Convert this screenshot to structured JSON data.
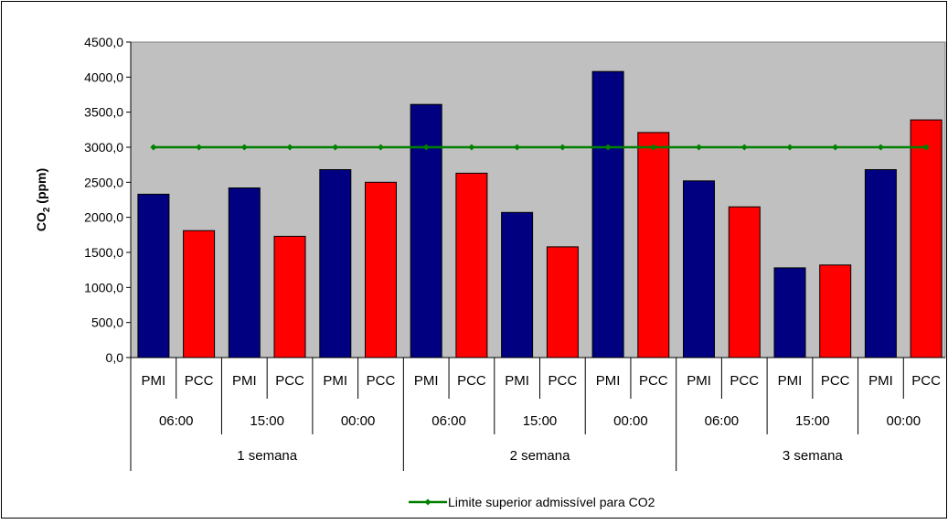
{
  "chart_data": {
    "type": "bar",
    "title": "",
    "xlabel": "",
    "ylabel": "CO",
    "ylabel_sub": "2",
    "ylabel_suffix": " (ppm)",
    "ylim": [
      0,
      4500
    ],
    "yticks": [
      "0,0",
      "500,0",
      "1000,0",
      "1500,0",
      "2000,0",
      "2500,0",
      "3000,0",
      "3500,0",
      "4000,0",
      "4500,0"
    ],
    "grid": false,
    "categories": [
      {
        "week": "1 semana",
        "time": "06:00",
        "group": "PMI"
      },
      {
        "week": "1 semana",
        "time": "06:00",
        "group": "PCC"
      },
      {
        "week": "1 semana",
        "time": "15:00",
        "group": "PMI"
      },
      {
        "week": "1 semana",
        "time": "15:00",
        "group": "PCC"
      },
      {
        "week": "1 semana",
        "time": "00:00",
        "group": "PMI"
      },
      {
        "week": "1 semana",
        "time": "00:00",
        "group": "PCC"
      },
      {
        "week": "2 semana",
        "time": "06:00",
        "group": "PMI"
      },
      {
        "week": "2 semana",
        "time": "06:00",
        "group": "PCC"
      },
      {
        "week": "2 semana",
        "time": "15:00",
        "group": "PMI"
      },
      {
        "week": "2 semana",
        "time": "15:00",
        "group": "PCC"
      },
      {
        "week": "2 semana",
        "time": "00:00",
        "group": "PMI"
      },
      {
        "week": "2 semana",
        "time": "00:00",
        "group": "PCC"
      },
      {
        "week": "3 semana",
        "time": "06:00",
        "group": "PMI"
      },
      {
        "week": "3 semana",
        "time": "06:00",
        "group": "PCC"
      },
      {
        "week": "3 semana",
        "time": "15:00",
        "group": "PMI"
      },
      {
        "week": "3 semana",
        "time": "15:00",
        "group": "PCC"
      },
      {
        "week": "3 semana",
        "time": "00:00",
        "group": "PMI"
      },
      {
        "week": "3 semana",
        "time": "00:00",
        "group": "PCC"
      }
    ],
    "series": [
      {
        "values": [
          2330,
          1810,
          2420,
          1730,
          2680,
          2500,
          3610,
          2630,
          2070,
          1580,
          4080,
          3210,
          2520,
          2150,
          1280,
          1320,
          2680,
          3390
        ],
        "colors": {
          "PMI": "#000080",
          "PCC": "#ff0000"
        }
      },
      {
        "name": "Limite superior admissível para CO2",
        "type": "line",
        "values": [
          3000,
          3000,
          3000,
          3000,
          3000,
          3000,
          3000,
          3000,
          3000,
          3000,
          3000,
          3000,
          3000,
          3000,
          3000,
          3000,
          3000,
          3000
        ],
        "color": "#008000"
      }
    ],
    "plot_background": "#c0c0c0",
    "legend_position": "bottom"
  }
}
